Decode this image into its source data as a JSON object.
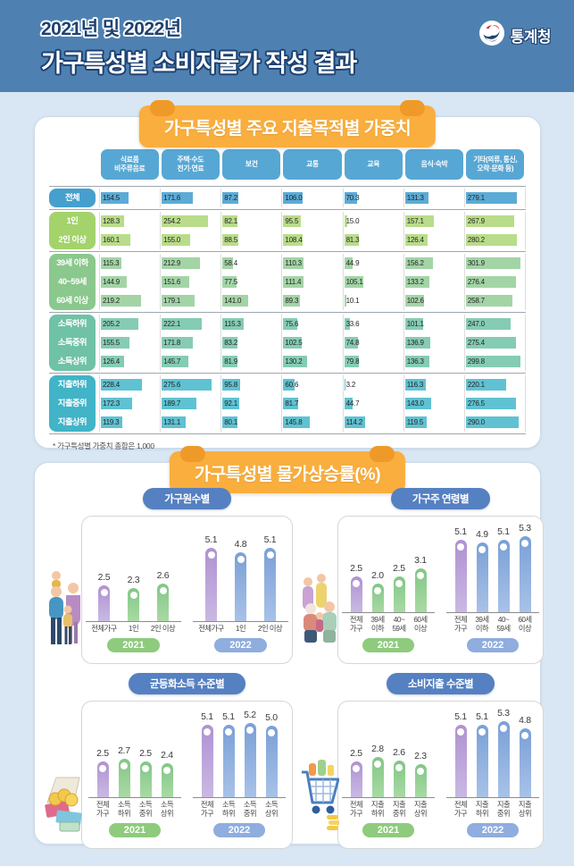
{
  "header": {
    "title_line1": "2021년 및 2022년",
    "title_line2": "가구특성별 소비자물가 작성 결과",
    "agency": "통계청"
  },
  "charts_section": {
    "title": "가구특성별 물가상승률(%)"
  },
  "colors": {
    "header_bg": "#4e81b1",
    "page_bg": "#d9e7f4",
    "banner_orange": "#f9ae3e",
    "column_header_blue": "#57a7d4",
    "row_label": {
      "all": "#45a0cd",
      "size": "#a4d36c",
      "age": "#8bc88d",
      "income": "#6fc2a6",
      "expense": "#41b4c8"
    },
    "row_bar": {
      "all": "#5cabd6",
      "size": "#b9dc8a",
      "age": "#a3d4a6",
      "income": "#85ccb4",
      "expense": "#5fc2d2"
    },
    "bar_purple": "linear-gradient(#b091d1,#c9b9e3)",
    "bar_green": "linear-gradient(#82c686,#a9daa4)",
    "bar_blue": "linear-gradient(#7aa0d6,#a8c2e8)",
    "chart_pill_blue": "#5580c2",
    "year_pill": {
      "2021": "#8ecb7d",
      "2022": "#8fadde"
    }
  },
  "chart_data": [
    {
      "type": "table",
      "title": "가구특성별 주요 지출목적별 가중치",
      "columns": [
        "식료품\n비주류음료",
        "주택·수도\n전기·연료",
        "보건",
        "교통",
        "교육",
        "음식·숙박",
        "기타(의류, 통신,\n오락·문화 등)"
      ],
      "row_groups": [
        {
          "key": "all",
          "rows": [
            {
              "label": "전체",
              "values": [
                154.5,
                171.6,
                87.2,
                106.0,
                70.3,
                131.3,
                279.1
              ]
            }
          ]
        },
        {
          "key": "size",
          "rows": [
            {
              "label": "1인",
              "values": [
                128.3,
                254.2,
                82.1,
                95.5,
                15.0,
                157.1,
                267.9
              ]
            },
            {
              "label": "2인 이상",
              "values": [
                160.1,
                155.0,
                88.5,
                108.4,
                81.3,
                126.4,
                280.2
              ]
            }
          ]
        },
        {
          "key": "age",
          "rows": [
            {
              "label": "39세 이하",
              "values": [
                115.3,
                212.9,
                58.4,
                110.3,
                44.9,
                156.2,
                301.9
              ]
            },
            {
              "label": "40~59세",
              "values": [
                144.9,
                151.6,
                77.5,
                111.4,
                105.1,
                133.2,
                276.4
              ]
            },
            {
              "label": "60세 이상",
              "values": [
                219.2,
                179.1,
                141.0,
                89.3,
                10.1,
                102.6,
                258.7
              ]
            }
          ]
        },
        {
          "key": "income",
          "rows": [
            {
              "label": "소득하위",
              "values": [
                205.2,
                222.1,
                115.3,
                75.6,
                33.6,
                101.1,
                247.0
              ]
            },
            {
              "label": "소득중위",
              "values": [
                155.5,
                171.8,
                83.2,
                102.5,
                74.8,
                136.9,
                275.4
              ]
            },
            {
              "label": "소득상위",
              "values": [
                126.4,
                145.7,
                81.9,
                130.2,
                79.8,
                136.3,
                299.8
              ]
            }
          ]
        },
        {
          "key": "expense",
          "rows": [
            {
              "label": "지출하위",
              "values": [
                228.4,
                275.6,
                95.8,
                60.6,
                3.2,
                116.3,
                220.1
              ]
            },
            {
              "label": "지출중위",
              "values": [
                172.3,
                189.7,
                92.1,
                81.7,
                44.7,
                143.0,
                276.5
              ]
            },
            {
              "label": "지출상위",
              "values": [
                119.3,
                131.1,
                80.1,
                145.8,
                114.2,
                119.5,
                290.0
              ]
            }
          ]
        }
      ],
      "footnote": "* 가구특성별 가중치 총합은 1,000",
      "value_axis_max": 330
    },
    {
      "type": "bar",
      "title": "가구원수별",
      "unit": "%",
      "groups": [
        {
          "year": "2021",
          "categories": [
            "전체가구",
            "1인",
            "2인 이상"
          ],
          "values": [
            2.5,
            2.3,
            2.6
          ]
        },
        {
          "year": "2022",
          "categories": [
            "전체가구",
            "1인",
            "2인 이상"
          ],
          "values": [
            5.1,
            4.8,
            5.1
          ]
        }
      ]
    },
    {
      "type": "bar",
      "title": "가구주 연령별",
      "unit": "%",
      "groups": [
        {
          "year": "2021",
          "categories": [
            "전체\n가구",
            "39세\n이하",
            "40~\n59세",
            "60세\n이상"
          ],
          "values": [
            2.5,
            2.0,
            2.5,
            3.1
          ]
        },
        {
          "year": "2022",
          "categories": [
            "전체\n가구",
            "39세\n이하",
            "40~\n59세",
            "60세\n이상"
          ],
          "values": [
            5.1,
            4.9,
            5.1,
            5.3
          ]
        }
      ]
    },
    {
      "type": "bar",
      "title": "균등화소득 수준별",
      "unit": "%",
      "groups": [
        {
          "year": "2021",
          "categories": [
            "전체\n가구",
            "소득\n하위",
            "소득\n중위",
            "소득\n상위"
          ],
          "values": [
            2.5,
            2.7,
            2.5,
            2.4
          ]
        },
        {
          "year": "2022",
          "categories": [
            "전체\n가구",
            "소득\n하위",
            "소득\n중위",
            "소득\n상위"
          ],
          "values": [
            5.1,
            5.1,
            5.2,
            5.0
          ]
        }
      ]
    },
    {
      "type": "bar",
      "title": "소비지출 수준별",
      "unit": "%",
      "groups": [
        {
          "year": "2021",
          "categories": [
            "전체\n가구",
            "지출\n하위",
            "지출\n중위",
            "지출\n상위"
          ],
          "values": [
            2.5,
            2.8,
            2.6,
            2.3
          ]
        },
        {
          "year": "2022",
          "categories": [
            "전체\n가구",
            "지출\n하위",
            "지출\n중위",
            "지출\n상위"
          ],
          "values": [
            5.1,
            5.1,
            5.3,
            4.8
          ]
        }
      ]
    }
  ]
}
